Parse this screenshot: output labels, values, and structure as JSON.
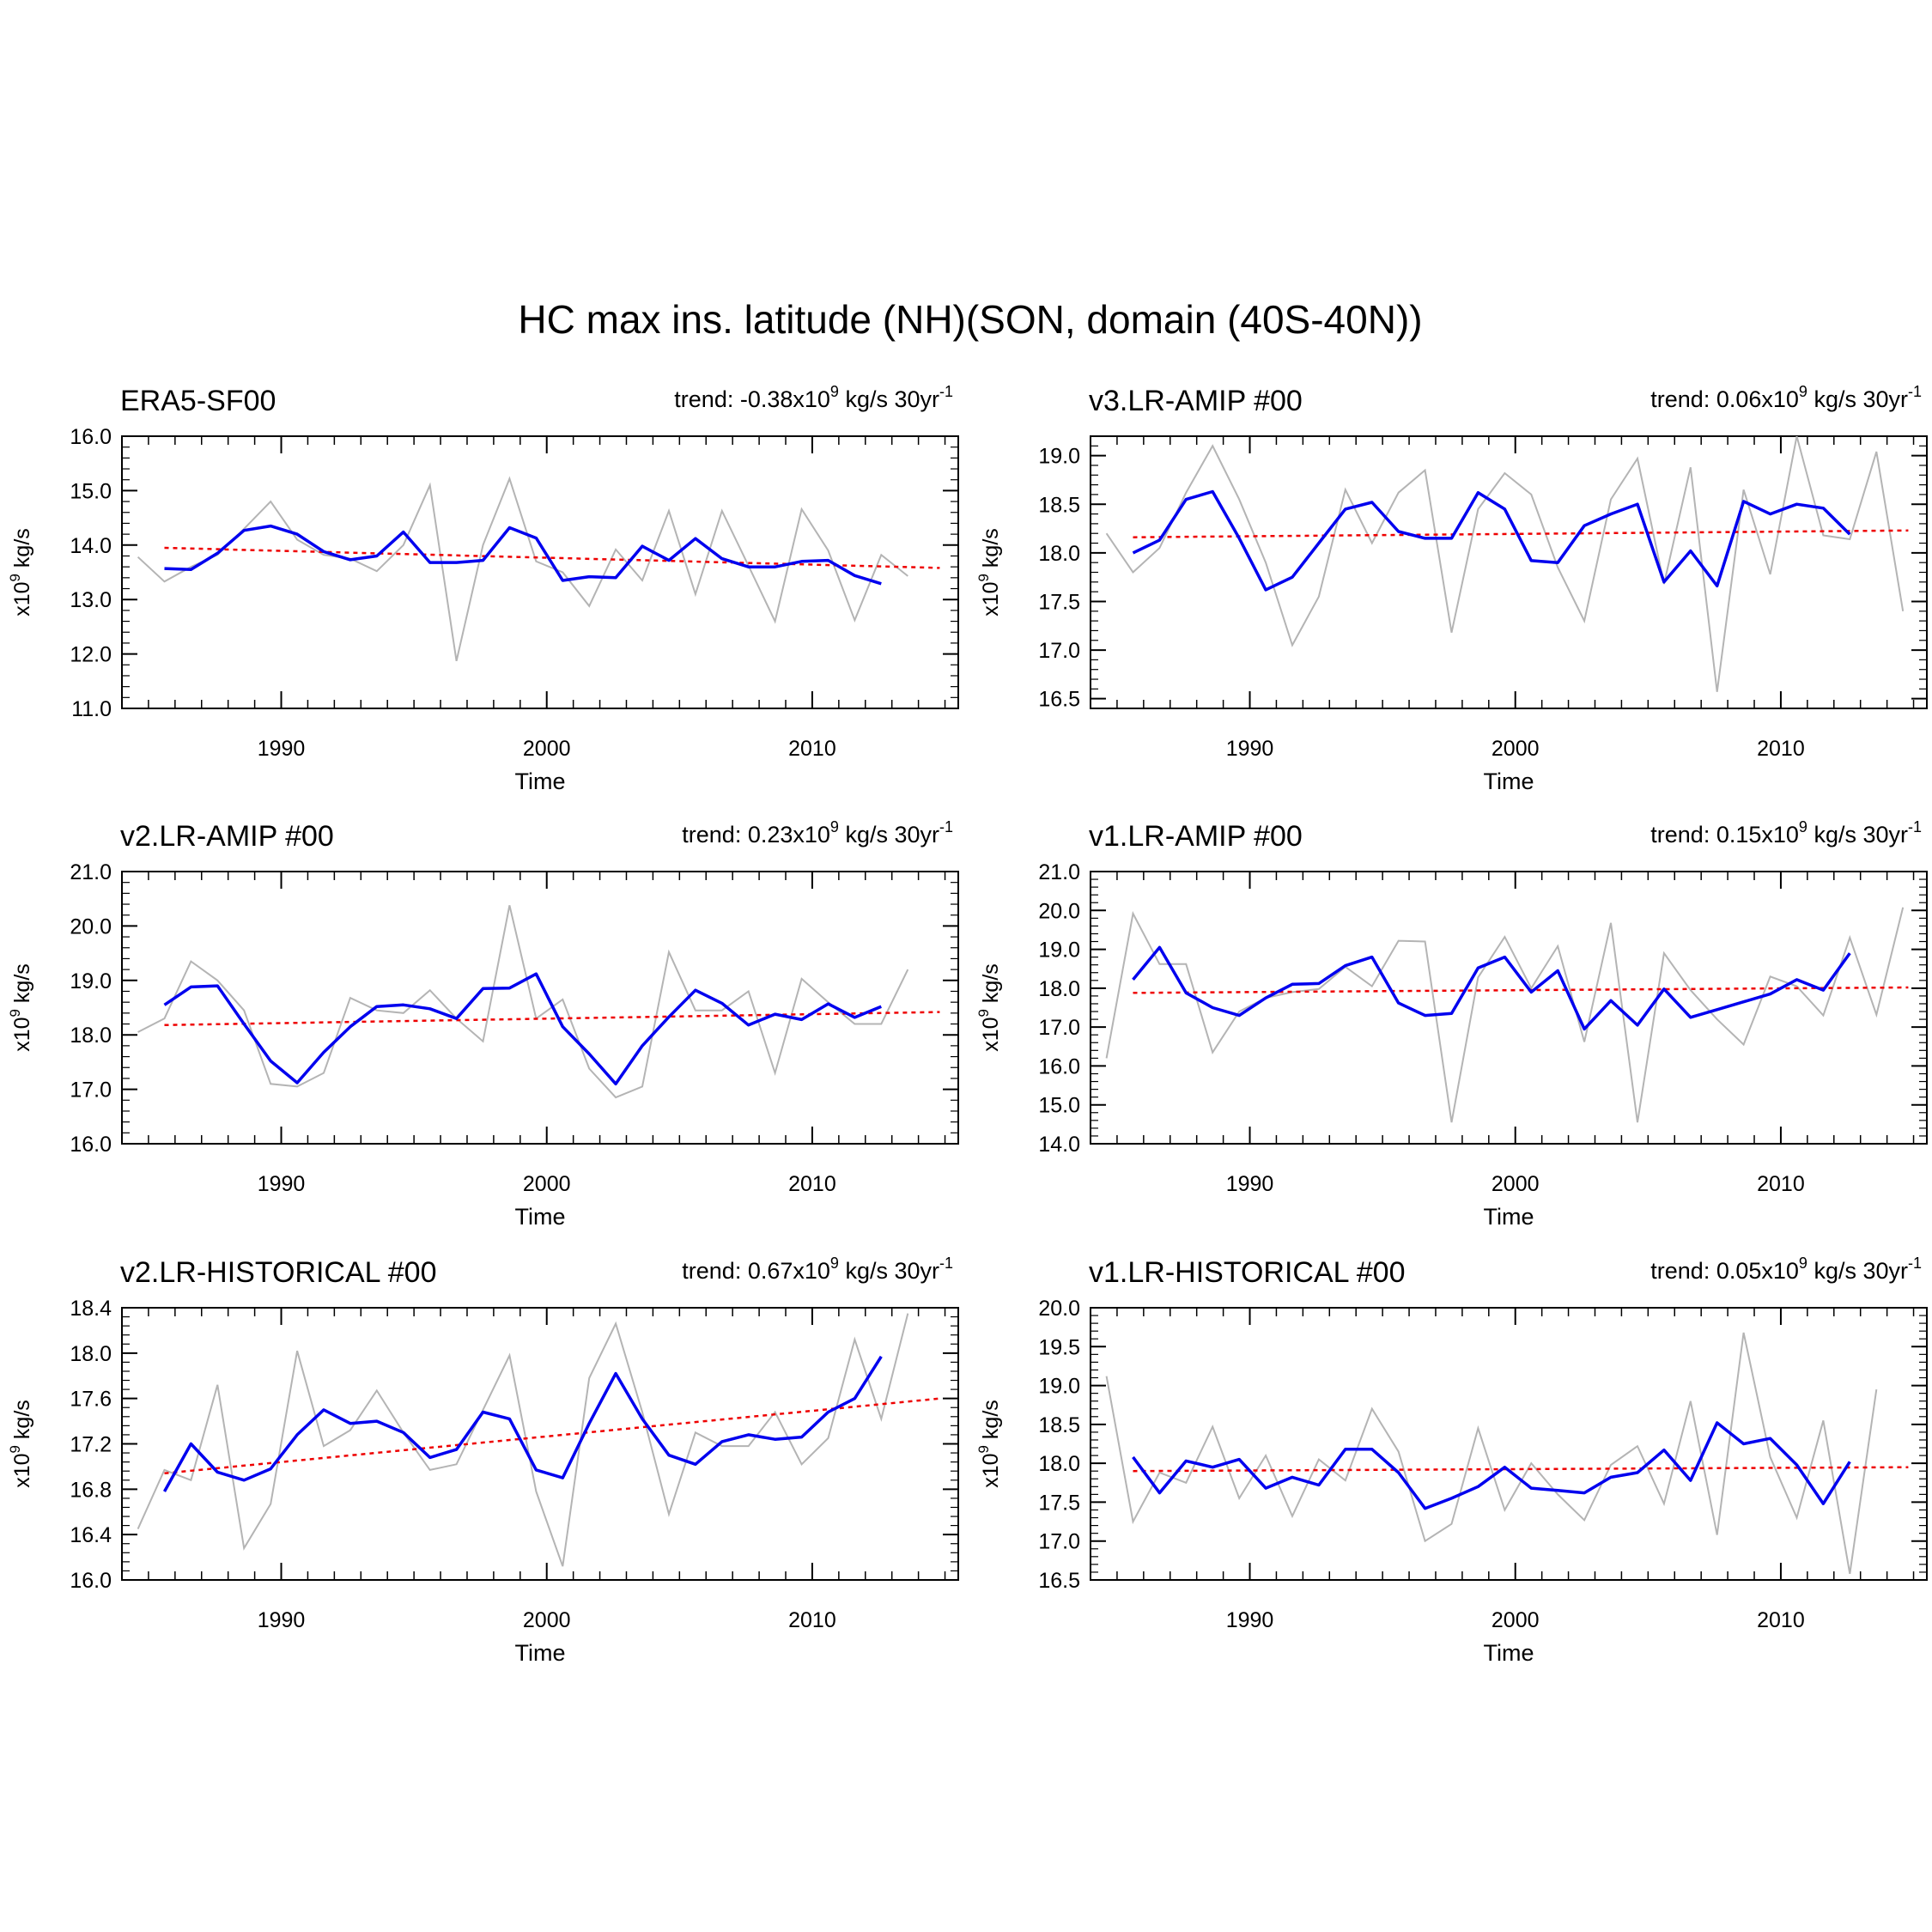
{
  "figure_title": "HC max ins. latitude (NH)(SON, domain (40S-40N))",
  "colors": {
    "raw": "#b4b4b4",
    "smoothed": "#0000ee",
    "trend": "#ee0000",
    "axis": "#000000"
  },
  "chart_data": [
    {
      "type": "line",
      "title": "ERA5-SF00",
      "trend_label": {
        "prefix": "trend: -0.38x10",
        "exp": "9",
        "mid": " kg/s 30yr",
        "sup2": "-1"
      },
      "xlabel": "Time",
      "ylabel": {
        "base": "x10",
        "exp": "9",
        "unit": " kg/s"
      },
      "xlim": [
        1984,
        2015.5
      ],
      "ylim": [
        11.0,
        16.0
      ],
      "yticks": [
        11.0,
        12.0,
        13.0,
        14.0,
        15.0,
        16.0
      ],
      "ytick_labels": [
        "11.0",
        "12.0",
        "13.0",
        "14.0",
        "15.0",
        "16.0"
      ],
      "xticks": [
        1990,
        2000,
        2010
      ],
      "xtick_labels": [
        "1990",
        "2000",
        "2010"
      ],
      "series": [
        {
          "name": "annual",
          "x_start": 1984.6,
          "values": [
            13.78,
            13.33,
            13.6,
            13.82,
            14.3,
            14.8,
            14.1,
            13.82,
            13.75,
            13.52,
            14.0,
            15.1,
            11.87,
            14.0,
            15.22,
            13.7,
            13.5,
            12.88,
            13.92,
            13.35,
            14.63,
            13.1,
            14.63,
            13.62,
            12.6,
            14.66,
            13.9,
            12.62,
            13.82,
            13.43
          ]
        },
        {
          "name": "smoothed",
          "x_start": 1985.6,
          "values": [
            13.57,
            13.55,
            13.85,
            14.27,
            14.35,
            14.2,
            13.88,
            13.73,
            13.8,
            14.24,
            13.68,
            13.68,
            13.72,
            14.32,
            14.13,
            13.35,
            13.42,
            13.4,
            13.98,
            13.72,
            14.12,
            13.75,
            13.6,
            13.6,
            13.7,
            13.72,
            13.44,
            13.29
          ]
        },
        {
          "name": "trend",
          "x": [
            1985.6,
            2014.8
          ],
          "values": [
            13.95,
            13.58
          ]
        }
      ]
    },
    {
      "type": "line",
      "title": "v3.LR-AMIP  #00",
      "trend_label": {
        "prefix": "trend: 0.06x10",
        "exp": "9",
        "mid": " kg/s 30yr",
        "sup2": "-1"
      },
      "xlabel": "Time",
      "ylabel": {
        "base": "x10",
        "exp": "9",
        "unit": " kg/s"
      },
      "xlim": [
        1984,
        2015.5
      ],
      "ylim": [
        16.4,
        19.2
      ],
      "yticks": [
        16.5,
        17.0,
        17.5,
        18.0,
        18.5,
        19.0
      ],
      "ytick_labels": [
        "16.5",
        "17.0",
        "17.5",
        "18.0",
        "18.5",
        "19.0"
      ],
      "xticks": [
        1990,
        2000,
        2010
      ],
      "xtick_labels": [
        "1990",
        "2000",
        "2010"
      ],
      "series": [
        {
          "name": "annual",
          "x_start": 1984.6,
          "values": [
            18.2,
            17.8,
            18.05,
            18.62,
            19.1,
            18.55,
            17.9,
            17.05,
            17.55,
            18.65,
            18.1,
            18.62,
            18.85,
            17.18,
            18.45,
            18.82,
            18.6,
            17.85,
            17.3,
            18.55,
            18.97,
            17.68,
            18.88,
            16.57,
            18.65,
            17.78,
            19.2,
            18.18,
            18.14,
            19.04,
            17.4
          ]
        },
        {
          "name": "smoothed",
          "x_start": 1985.6,
          "values": [
            18.0,
            18.13,
            18.55,
            18.63,
            18.15,
            17.62,
            17.75,
            18.1,
            18.45,
            18.52,
            18.22,
            18.15,
            18.15,
            18.62,
            18.45,
            17.92,
            17.9,
            18.28,
            18.4,
            18.5,
            17.7,
            18.02,
            17.66,
            18.53,
            18.4,
            18.5,
            18.46,
            18.19
          ]
        },
        {
          "name": "trend",
          "x": [
            1985.6,
            2014.8
          ],
          "values": [
            18.16,
            18.23
          ]
        }
      ]
    },
    {
      "type": "line",
      "title": "v2.LR-AMIP  #00",
      "trend_label": {
        "prefix": "trend: 0.23x10",
        "exp": "9",
        "mid": " kg/s 30yr",
        "sup2": "-1"
      },
      "xlabel": "Time",
      "ylabel": {
        "base": "x10",
        "exp": "9",
        "unit": " kg/s"
      },
      "xlim": [
        1984,
        2015.5
      ],
      "ylim": [
        16.0,
        21.0
      ],
      "yticks": [
        16.0,
        17.0,
        18.0,
        19.0,
        20.0,
        21.0
      ],
      "ytick_labels": [
        "16.0",
        "17.0",
        "18.0",
        "19.0",
        "20.0",
        "21.0"
      ],
      "xticks": [
        1990,
        2000,
        2010
      ],
      "xtick_labels": [
        "1990",
        "2000",
        "2010"
      ],
      "series": [
        {
          "name": "annual",
          "x_start": 1984.6,
          "values": [
            18.05,
            18.3,
            19.35,
            19.0,
            18.45,
            17.1,
            17.05,
            17.3,
            18.68,
            18.45,
            18.4,
            18.82,
            18.3,
            17.88,
            20.38,
            18.3,
            18.65,
            17.38,
            16.85,
            17.05,
            19.52,
            18.45,
            18.45,
            18.8,
            17.3,
            19.03,
            18.6,
            18.2,
            18.2,
            19.2
          ]
        },
        {
          "name": "smoothed",
          "x_start": 1985.6,
          "values": [
            18.55,
            18.88,
            18.9,
            18.2,
            17.52,
            17.12,
            17.68,
            18.15,
            18.52,
            18.55,
            18.48,
            18.3,
            18.85,
            18.86,
            19.12,
            18.15,
            17.65,
            17.1,
            17.8,
            18.33,
            18.82,
            18.58,
            18.18,
            18.38,
            18.28,
            18.57,
            18.32,
            18.52
          ]
        },
        {
          "name": "trend",
          "x": [
            1985.6,
            2014.8
          ],
          "values": [
            18.18,
            18.42
          ]
        }
      ]
    },
    {
      "type": "line",
      "title": "v1.LR-AMIP  #00",
      "trend_label": {
        "prefix": "trend: 0.15x10",
        "exp": "9",
        "mid": " kg/s 30yr",
        "sup2": "-1"
      },
      "xlabel": "Time",
      "ylabel": {
        "base": "x10",
        "exp": "9",
        "unit": " kg/s"
      },
      "xlim": [
        1984,
        2015.5
      ],
      "ylim": [
        14.0,
        21.0
      ],
      "yticks": [
        14.0,
        15.0,
        16.0,
        17.0,
        18.0,
        19.0,
        20.0,
        21.0
      ],
      "ytick_labels": [
        "14.0",
        "15.0",
        "16.0",
        "17.0",
        "18.0",
        "19.0",
        "20.0",
        "21.0"
      ],
      "xticks": [
        1990,
        2000,
        2010
      ],
      "xtick_labels": [
        "1990",
        "2000",
        "2010"
      ],
      "series": [
        {
          "name": "annual",
          "x_start": 1984.6,
          "values": [
            16.2,
            19.92,
            18.62,
            18.62,
            16.35,
            17.4,
            17.75,
            17.9,
            17.98,
            18.55,
            18.05,
            19.22,
            19.2,
            14.55,
            18.28,
            19.32,
            18.0,
            19.08,
            16.62,
            19.68,
            14.55,
            18.9,
            17.95,
            17.2,
            16.55,
            18.3,
            18.05,
            17.3,
            19.3,
            17.32,
            20.08
          ]
        },
        {
          "name": "smoothed",
          "x_start": 1985.6,
          "values": [
            18.22,
            19.05,
            17.88,
            17.5,
            17.3,
            17.75,
            18.1,
            18.12,
            18.58,
            18.8,
            17.62,
            17.3,
            17.35,
            18.52,
            18.8,
            17.9,
            18.45,
            16.95,
            17.68,
            17.05,
            17.98,
            17.25,
            17.45,
            17.65,
            17.85,
            18.22,
            17.95,
            18.9
          ]
        },
        {
          "name": "trend",
          "x": [
            1985.6,
            2014.8
          ],
          "values": [
            17.88,
            18.02
          ]
        }
      ]
    },
    {
      "type": "line",
      "title": "v2.LR-HISTORICAL  #00",
      "trend_label": {
        "prefix": "trend: 0.67x10",
        "exp": "9",
        "mid": " kg/s 30yr",
        "sup2": "-1"
      },
      "xlabel": "Time",
      "ylabel": {
        "base": "x10",
        "exp": "9",
        "unit": " kg/s"
      },
      "xlim": [
        1984,
        2015.5
      ],
      "ylim": [
        16.0,
        18.4
      ],
      "yticks": [
        16.0,
        16.4,
        16.8,
        17.2,
        17.6,
        18.0,
        18.4
      ],
      "ytick_labels": [
        "16.0",
        "16.4",
        "16.8",
        "17.2",
        "17.6",
        "18.0",
        "18.4"
      ],
      "xticks": [
        1990,
        2000,
        2010
      ],
      "xtick_labels": [
        "1990",
        "2000",
        "2010"
      ],
      "series": [
        {
          "name": "annual",
          "x_start": 1984.6,
          "values": [
            16.45,
            16.97,
            16.88,
            17.72,
            16.28,
            16.67,
            18.02,
            17.18,
            17.32,
            17.67,
            17.3,
            16.97,
            17.02,
            17.5,
            17.98,
            16.78,
            16.12,
            17.78,
            18.26,
            17.48,
            16.58,
            17.3,
            17.18,
            17.18,
            17.48,
            17.02,
            17.25,
            18.12,
            17.42,
            18.35
          ]
        },
        {
          "name": "smoothed",
          "x_start": 1985.6,
          "values": [
            16.78,
            17.2,
            16.95,
            16.88,
            16.98,
            17.28,
            17.5,
            17.38,
            17.4,
            17.3,
            17.08,
            17.15,
            17.48,
            17.42,
            16.97,
            16.9,
            17.38,
            17.82,
            17.42,
            17.1,
            17.02,
            17.22,
            17.28,
            17.24,
            17.26,
            17.48,
            17.6,
            17.97
          ]
        },
        {
          "name": "trend",
          "x": [
            1985.6,
            2014.8
          ],
          "values": [
            16.94,
            17.6
          ]
        }
      ]
    },
    {
      "type": "line",
      "title": "v1.LR-HISTORICAL  #00",
      "trend_label": {
        "prefix": "trend: 0.05x10",
        "exp": "9",
        "mid": " kg/s 30yr",
        "sup2": "-1"
      },
      "xlabel": "Time",
      "ylabel": {
        "base": "x10",
        "exp": "9",
        "unit": " kg/s"
      },
      "xlim": [
        1984,
        2015.5
      ],
      "ylim": [
        16.5,
        20.0
      ],
      "yticks": [
        16.5,
        17.0,
        17.5,
        18.0,
        18.5,
        19.0,
        19.5,
        20.0
      ],
      "ytick_labels": [
        "16.5",
        "17.0",
        "17.5",
        "18.0",
        "18.5",
        "19.0",
        "19.5",
        "20.0"
      ],
      "xticks": [
        1990,
        2000,
        2010
      ],
      "xtick_labels": [
        "1990",
        "2000",
        "2010"
      ],
      "series": [
        {
          "name": "annual",
          "x_start": 1984.6,
          "values": [
            19.12,
            17.25,
            17.88,
            17.75,
            18.47,
            17.55,
            18.1,
            17.32,
            18.05,
            17.78,
            18.7,
            18.15,
            17.0,
            17.22,
            18.45,
            17.4,
            18.0,
            17.6,
            17.27,
            17.98,
            18.22,
            17.48,
            18.8,
            17.08,
            19.68,
            18.08,
            17.3,
            18.55,
            16.58,
            18.95
          ]
        },
        {
          "name": "smoothed",
          "x_start": 1985.6,
          "values": [
            18.08,
            17.62,
            18.03,
            17.95,
            18.05,
            17.68,
            17.82,
            17.72,
            18.18,
            18.18,
            17.88,
            17.42,
            17.55,
            17.7,
            17.95,
            17.68,
            17.65,
            17.62,
            17.82,
            17.88,
            18.17,
            17.78,
            18.52,
            18.25,
            18.32,
            17.98,
            17.48,
            18.02
          ]
        },
        {
          "name": "trend",
          "x": [
            1985.6,
            2014.8
          ],
          "values": [
            17.9,
            17.95
          ]
        }
      ]
    }
  ]
}
